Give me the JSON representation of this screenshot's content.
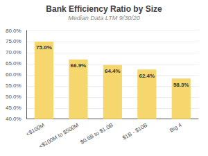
{
  "chart_data": {
    "type": "bar",
    "title": "Bank Efficiency Ratio by Size",
    "subtitle": "Median Data LTM 9/30/20",
    "categories": [
      "<$100M",
      "<$100M to $500M",
      "$0.5B to $1.0B",
      "$1B - $10B",
      "Big 4"
    ],
    "values": [
      75.0,
      66.9,
      64.4,
      62.4,
      58.3
    ],
    "value_labels": [
      "75.0%",
      "66.9%",
      "64.4%",
      "62.4%",
      "58.3%"
    ],
    "data_labels": true,
    "color": "#F5D76E",
    "ylim": [
      40.0,
      80.0
    ],
    "yticks": [
      {
        "value": 40.0,
        "label": "40.0%"
      },
      {
        "value": 45.0,
        "label": "45.0%"
      },
      {
        "value": 50.0,
        "label": "50.0%"
      },
      {
        "value": 55.0,
        "label": "55.0%"
      },
      {
        "value": 60.0,
        "label": "60.0%"
      },
      {
        "value": 65.0,
        "label": "65.0%"
      },
      {
        "value": 70.0,
        "label": "70.0%"
      },
      {
        "value": 75.0,
        "label": "75.0%"
      },
      {
        "value": 80.0,
        "label": "80.0%"
      }
    ],
    "grid": true
  }
}
